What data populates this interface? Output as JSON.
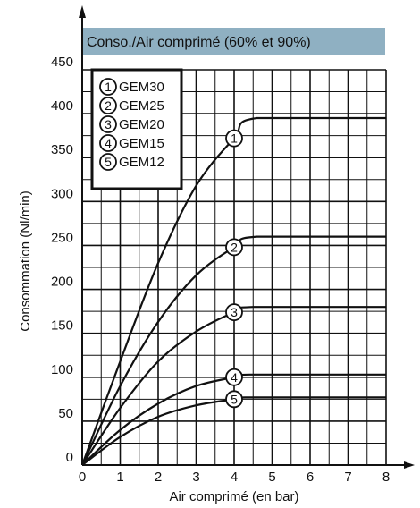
{
  "chart_data": {
    "type": "line",
    "title": "Conso./Air comprimé (60% et 90%)",
    "xlabel": "Air comprimé (en bar)",
    "ylabel": "Consommation (Nl/min)",
    "xlim": [
      0,
      8
    ],
    "ylim": [
      0,
      450
    ],
    "xticks": [
      0,
      1,
      2,
      3,
      4,
      5,
      6,
      7,
      8
    ],
    "yticks": [
      0,
      50,
      100,
      150,
      200,
      250,
      300,
      350,
      400,
      450
    ],
    "grid": true,
    "legend_position": "top-left",
    "series": [
      {
        "id": "1",
        "name": "GEM30",
        "marker_label": "1",
        "marker_x": 4,
        "points": [
          [
            0,
            0
          ],
          [
            1,
            118
          ],
          [
            2,
            230
          ],
          [
            3,
            318
          ],
          [
            4,
            372
          ],
          [
            4.6,
            395
          ],
          [
            8,
            395
          ]
        ]
      },
      {
        "id": "2",
        "name": "GEM25",
        "marker_label": "2",
        "marker_x": 4,
        "points": [
          [
            0,
            0
          ],
          [
            1,
            90
          ],
          [
            2,
            163
          ],
          [
            3,
            216
          ],
          [
            4,
            248
          ],
          [
            4.6,
            260
          ],
          [
            8,
            260
          ]
        ]
      },
      {
        "id": "3",
        "name": "GEM20",
        "marker_label": "3",
        "marker_x": 4,
        "points": [
          [
            0,
            0
          ],
          [
            1,
            65
          ],
          [
            2,
            118
          ],
          [
            3,
            152
          ],
          [
            4,
            174
          ],
          [
            4.5,
            180
          ],
          [
            8,
            180
          ]
        ]
      },
      {
        "id": "4",
        "name": "GEM15",
        "marker_label": "4",
        "marker_x": 4,
        "points": [
          [
            0,
            0
          ],
          [
            1,
            40
          ],
          [
            2,
            70
          ],
          [
            3,
            90
          ],
          [
            4,
            100
          ],
          [
            4.4,
            103
          ],
          [
            8,
            103
          ]
        ]
      },
      {
        "id": "5",
        "name": "GEM12",
        "marker_label": "5",
        "marker_x": 4,
        "points": [
          [
            0,
            0
          ],
          [
            1,
            32
          ],
          [
            2,
            55
          ],
          [
            3,
            68
          ],
          [
            4,
            75
          ],
          [
            4.3,
            77
          ],
          [
            8,
            77
          ]
        ]
      }
    ]
  }
}
